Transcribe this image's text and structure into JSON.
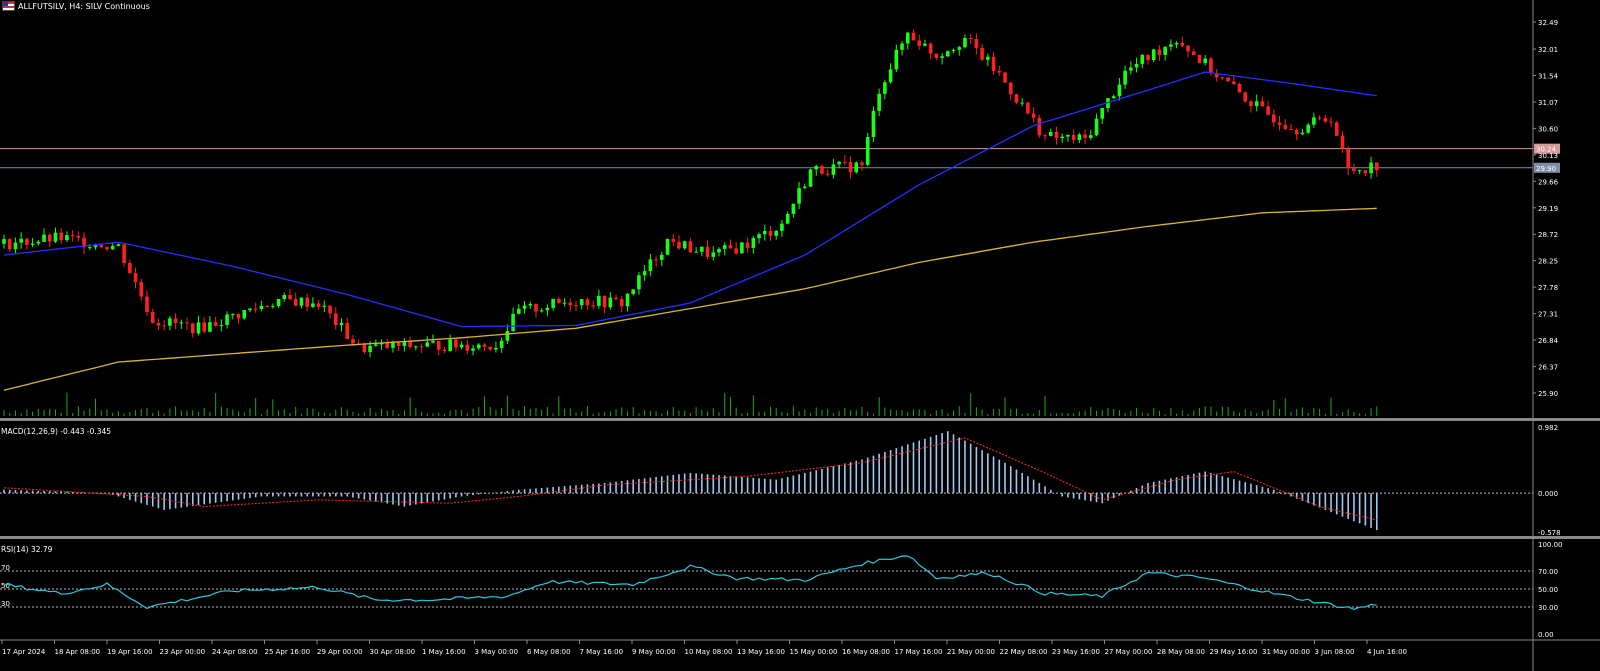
{
  "header": {
    "title": "ALLFUTSILV, H4:  SILV Continuous",
    "flag_icon": "us-flag-icon"
  },
  "price_axis": {
    "ticks": [
      "32.49",
      "32.01",
      "31.54",
      "31.07",
      "30.60",
      "30.13",
      "29.66",
      "29.19",
      "28.72",
      "28.25",
      "27.78",
      "27.31",
      "26.84",
      "26.37",
      "25.90"
    ],
    "level_lines": [
      {
        "value": 30.24,
        "label": "30.24",
        "color": "#d69a96"
      },
      {
        "value": 29.9,
        "label": "29.90",
        "color": "#7f8ea6"
      }
    ]
  },
  "macd": {
    "label": "MACD(12,26,9) -0.443 -0.345",
    "ticks": [
      "0.982",
      "0.000",
      "-0.578"
    ]
  },
  "rsi": {
    "label": "RSI(14) 32.79",
    "ticks": [
      "100.00",
      "70.00",
      "50.00",
      "30.00",
      "0.00"
    ],
    "left_levels": [
      "70",
      "50",
      "30"
    ]
  },
  "time_axis": [
    "17 Apr 2024",
    "18 Apr 08:00",
    "19 Apr 16:00",
    "23 Apr 00:00",
    "24 Apr 08:00",
    "25 Apr 16:00",
    "29 Apr 00:00",
    "30 Apr 08:00",
    "1 May 16:00",
    "3 May 00:00",
    "6 May 08:00",
    "7 May 16:00",
    "9 May 00:00",
    "10 May 08:00",
    "13 May 16:00",
    "15 May 00:00",
    "16 May 08:00",
    "17 May 16:00",
    "21 May 00:00",
    "22 May 08:00",
    "23 May 16:00",
    "27 May 00:00",
    "28 May 08:00",
    "29 May 16:00",
    "31 May 00:00",
    "3 Jun 08:00",
    "4 Jun 16:00"
  ],
  "colors": {
    "bull": "#16ff14",
    "bear": "#ff2020",
    "ma_fast": "#2330ff",
    "ma_slow": "#d8b430",
    "macd_hist": "#9fc8f0",
    "macd_signal": "#ff2a2a",
    "rsi_line": "#28c8e0",
    "volume": "#1fa81f",
    "axis_text": "#ffffff"
  },
  "chart_data": {
    "type": "line",
    "symbol": "ALLFUTSILV",
    "timeframe": "H4",
    "price_path": [
      {
        "bar": 0,
        "price": 28.55
      },
      {
        "bar": 10,
        "price": 28.65
      },
      {
        "bar": 20,
        "price": 28.5
      },
      {
        "bar": 26,
        "price": 27.2
      },
      {
        "bar": 34,
        "price": 27.05
      },
      {
        "bar": 48,
        "price": 27.55
      },
      {
        "bar": 55,
        "price": 27.5
      },
      {
        "bar": 62,
        "price": 26.7
      },
      {
        "bar": 75,
        "price": 26.75
      },
      {
        "bar": 86,
        "price": 26.75
      },
      {
        "bar": 90,
        "price": 27.35
      },
      {
        "bar": 100,
        "price": 27.55
      },
      {
        "bar": 108,
        "price": 27.5
      },
      {
        "bar": 116,
        "price": 28.6
      },
      {
        "bar": 124,
        "price": 28.35
      },
      {
        "bar": 130,
        "price": 28.55
      },
      {
        "bar": 136,
        "price": 28.9
      },
      {
        "bar": 141,
        "price": 29.85
      },
      {
        "bar": 150,
        "price": 29.95
      },
      {
        "bar": 153,
        "price": 31.3
      },
      {
        "bar": 158,
        "price": 32.3
      },
      {
        "bar": 163,
        "price": 31.9
      },
      {
        "bar": 168,
        "price": 32.2
      },
      {
        "bar": 174,
        "price": 31.55
      },
      {
        "bar": 182,
        "price": 30.45
      },
      {
        "bar": 189,
        "price": 30.4
      },
      {
        "bar": 196,
        "price": 31.6
      },
      {
        "bar": 205,
        "price": 32.2
      },
      {
        "bar": 212,
        "price": 31.55
      },
      {
        "bar": 220,
        "price": 30.9
      },
      {
        "bar": 226,
        "price": 30.6
      },
      {
        "bar": 232,
        "price": 30.8
      },
      {
        "bar": 235,
        "price": 29.85
      },
      {
        "bar": 240,
        "price": 29.95
      }
    ],
    "ma_fast": [
      {
        "bar": 0,
        "price": 28.35
      },
      {
        "bar": 20,
        "price": 28.58
      },
      {
        "bar": 40,
        "price": 28.15
      },
      {
        "bar": 60,
        "price": 27.65
      },
      {
        "bar": 80,
        "price": 27.08
      },
      {
        "bar": 100,
        "price": 27.1
      },
      {
        "bar": 120,
        "price": 27.5
      },
      {
        "bar": 140,
        "price": 28.35
      },
      {
        "bar": 160,
        "price": 29.6
      },
      {
        "bar": 180,
        "price": 30.65
      },
      {
        "bar": 200,
        "price": 31.28
      },
      {
        "bar": 210,
        "price": 31.6
      },
      {
        "bar": 225,
        "price": 31.4
      },
      {
        "bar": 240,
        "price": 31.18
      }
    ],
    "ma_slow": [
      {
        "bar": 0,
        "price": 25.95
      },
      {
        "bar": 20,
        "price": 26.45
      },
      {
        "bar": 40,
        "price": 26.6
      },
      {
        "bar": 60,
        "price": 26.75
      },
      {
        "bar": 80,
        "price": 26.88
      },
      {
        "bar": 100,
        "price": 27.05
      },
      {
        "bar": 120,
        "price": 27.4
      },
      {
        "bar": 140,
        "price": 27.75
      },
      {
        "bar": 160,
        "price": 28.22
      },
      {
        "bar": 180,
        "price": 28.58
      },
      {
        "bar": 200,
        "price": 28.86
      },
      {
        "bar": 220,
        "price": 29.1
      },
      {
        "bar": 240,
        "price": 29.18
      }
    ],
    "macd_hist_path": [
      {
        "bar": 0,
        "v": 0.05
      },
      {
        "bar": 18,
        "v": 0.0
      },
      {
        "bar": 28,
        "v": -0.25
      },
      {
        "bar": 45,
        "v": -0.05
      },
      {
        "bar": 60,
        "v": -0.05
      },
      {
        "bar": 70,
        "v": -0.2
      },
      {
        "bar": 80,
        "v": -0.05
      },
      {
        "bar": 90,
        "v": 0.05
      },
      {
        "bar": 105,
        "v": 0.15
      },
      {
        "bar": 120,
        "v": 0.3
      },
      {
        "bar": 135,
        "v": 0.2
      },
      {
        "bar": 150,
        "v": 0.5
      },
      {
        "bar": 165,
        "v": 0.92
      },
      {
        "bar": 175,
        "v": 0.45
      },
      {
        "bar": 185,
        "v": -0.05
      },
      {
        "bar": 192,
        "v": -0.15
      },
      {
        "bar": 200,
        "v": 0.15
      },
      {
        "bar": 210,
        "v": 0.32
      },
      {
        "bar": 222,
        "v": 0.05
      },
      {
        "bar": 240,
        "v": -0.55
      }
    ],
    "macd_signal_path": [
      {
        "bar": 0,
        "v": 0.08
      },
      {
        "bar": 25,
        "v": -0.05
      },
      {
        "bar": 35,
        "v": -0.2
      },
      {
        "bar": 55,
        "v": -0.1
      },
      {
        "bar": 78,
        "v": -0.15
      },
      {
        "bar": 90,
        "v": -0.05
      },
      {
        "bar": 105,
        "v": 0.12
      },
      {
        "bar": 130,
        "v": 0.25
      },
      {
        "bar": 150,
        "v": 0.45
      },
      {
        "bar": 168,
        "v": 0.82
      },
      {
        "bar": 182,
        "v": 0.3
      },
      {
        "bar": 192,
        "v": -0.1
      },
      {
        "bar": 205,
        "v": 0.2
      },
      {
        "bar": 215,
        "v": 0.32
      },
      {
        "bar": 230,
        "v": -0.2
      },
      {
        "bar": 240,
        "v": -0.4
      }
    ],
    "rsi_path": [
      {
        "bar": 0,
        "v": 55
      },
      {
        "bar": 10,
        "v": 45
      },
      {
        "bar": 18,
        "v": 55
      },
      {
        "bar": 25,
        "v": 30
      },
      {
        "bar": 40,
        "v": 48
      },
      {
        "bar": 55,
        "v": 52
      },
      {
        "bar": 65,
        "v": 38
      },
      {
        "bar": 75,
        "v": 38
      },
      {
        "bar": 88,
        "v": 42
      },
      {
        "bar": 95,
        "v": 58
      },
      {
        "bar": 110,
        "v": 55
      },
      {
        "bar": 120,
        "v": 75
      },
      {
        "bar": 128,
        "v": 62
      },
      {
        "bar": 140,
        "v": 60
      },
      {
        "bar": 150,
        "v": 78
      },
      {
        "bar": 158,
        "v": 88
      },
      {
        "bar": 163,
        "v": 62
      },
      {
        "bar": 172,
        "v": 68
      },
      {
        "bar": 182,
        "v": 45
      },
      {
        "bar": 192,
        "v": 42
      },
      {
        "bar": 200,
        "v": 68
      },
      {
        "bar": 210,
        "v": 62
      },
      {
        "bar": 222,
        "v": 45
      },
      {
        "bar": 230,
        "v": 35
      },
      {
        "bar": 236,
        "v": 28
      },
      {
        "bar": 240,
        "v": 33
      }
    ]
  }
}
